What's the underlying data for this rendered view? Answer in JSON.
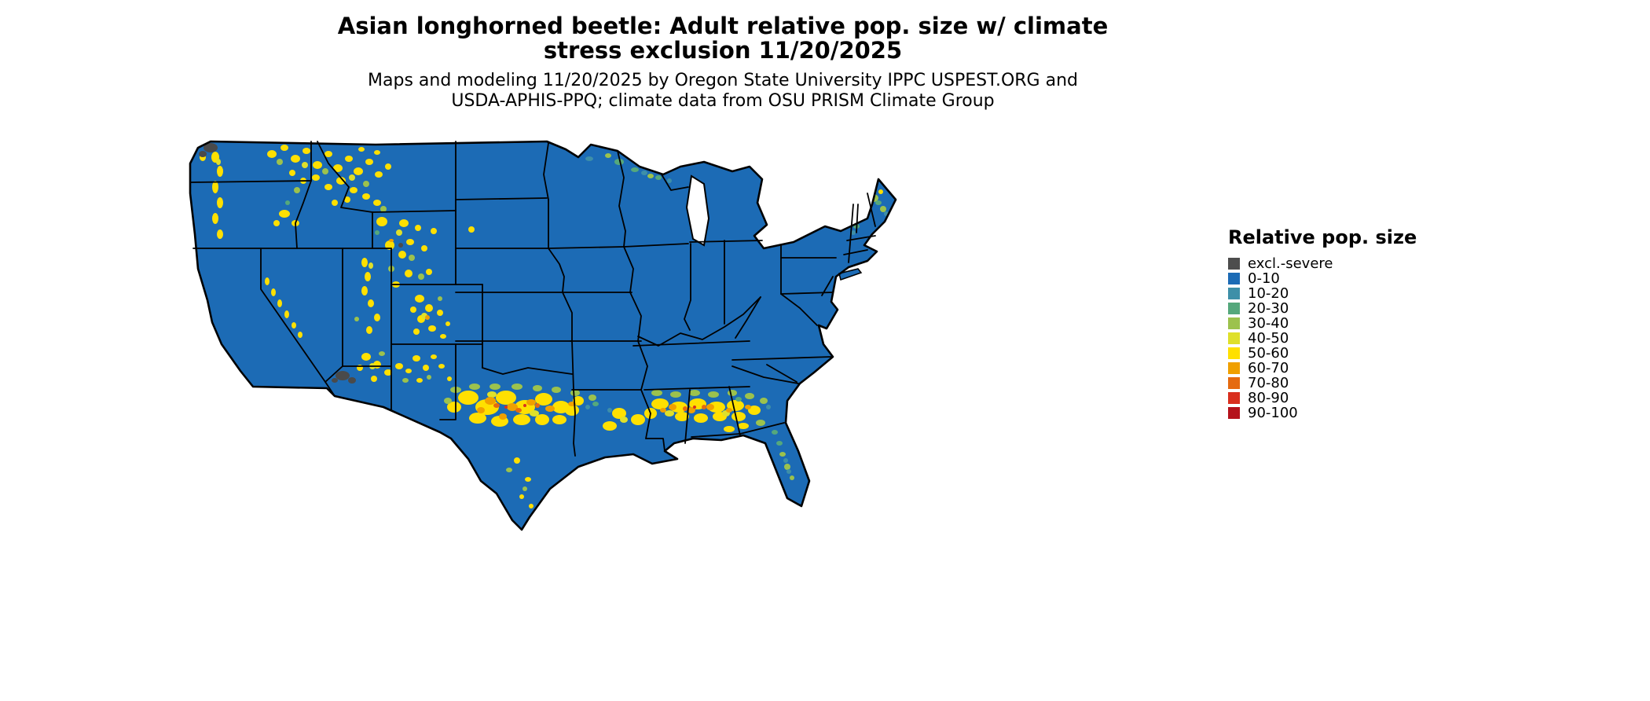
{
  "title": {
    "line1": "Asian longhorned beetle: Adult relative pop. size w/ climate",
    "line2": "stress exclusion 11/20/2025"
  },
  "subtitle": {
    "line1": "Maps and modeling 11/20/2025 by Oregon State University IPPC USPEST.ORG and",
    "line2": "USDA-APHIS-PPQ; climate data from OSU PRISM Climate Group"
  },
  "legend": {
    "title": "Relative pop. size",
    "entries": [
      {
        "label": "excl.-severe",
        "color": "#4d4d4d"
      },
      {
        "label": "0-10",
        "color": "#1c6bb5"
      },
      {
        "label": "10-20",
        "color": "#3e8fa8"
      },
      {
        "label": "20-30",
        "color": "#55a87c"
      },
      {
        "label": "30-40",
        "color": "#9cc24d"
      },
      {
        "label": "40-50",
        "color": "#dfe02a"
      },
      {
        "label": "50-60",
        "color": "#ffe000"
      },
      {
        "label": "60-70",
        "color": "#f0a000"
      },
      {
        "label": "70-80",
        "color": "#e56a10"
      },
      {
        "label": "80-90",
        "color": "#d92f1e"
      },
      {
        "label": "90-100",
        "color": "#b5121b"
      }
    ]
  },
  "map": {
    "region": "Contiguous United States",
    "base_value_color": "#1c6bb5",
    "boundary_color": "#000000"
  }
}
